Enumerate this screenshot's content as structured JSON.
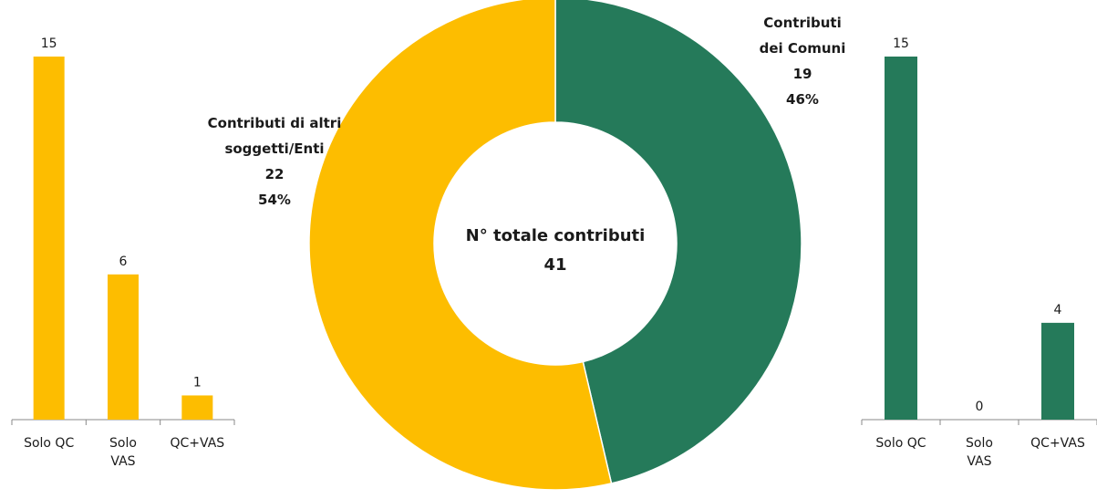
{
  "colors": {
    "others": "#FDBD00",
    "comuni": "#257A5A"
  },
  "chart_data": [
    {
      "type": "bar",
      "categories": [
        [
          "Solo QC"
        ],
        [
          "Solo",
          "VAS"
        ],
        [
          "QC+VAS"
        ]
      ],
      "values": [
        15,
        6,
        1
      ],
      "ylim": [
        0,
        15
      ],
      "grid": false,
      "color": "#FDBD00"
    },
    {
      "type": "pie",
      "donut": true,
      "center": {
        "line1": "N° totale contributi",
        "line2": "41"
      },
      "slices": [
        {
          "label": [
            "Contributi",
            "dei Comuni"
          ],
          "value": 19,
          "percent": "46%",
          "color": "#257A5A"
        },
        {
          "label": [
            "Contributi di altri",
            "soggetti/Enti"
          ],
          "value": 22,
          "percent": "54%",
          "color": "#FDBD00"
        }
      ]
    },
    {
      "type": "bar",
      "categories": [
        [
          "Solo QC"
        ],
        [
          "Solo",
          "VAS"
        ],
        [
          "QC+VAS"
        ]
      ],
      "values": [
        15,
        0,
        4
      ],
      "ylim": [
        0,
        15
      ],
      "grid": false,
      "color": "#257A5A"
    }
  ]
}
